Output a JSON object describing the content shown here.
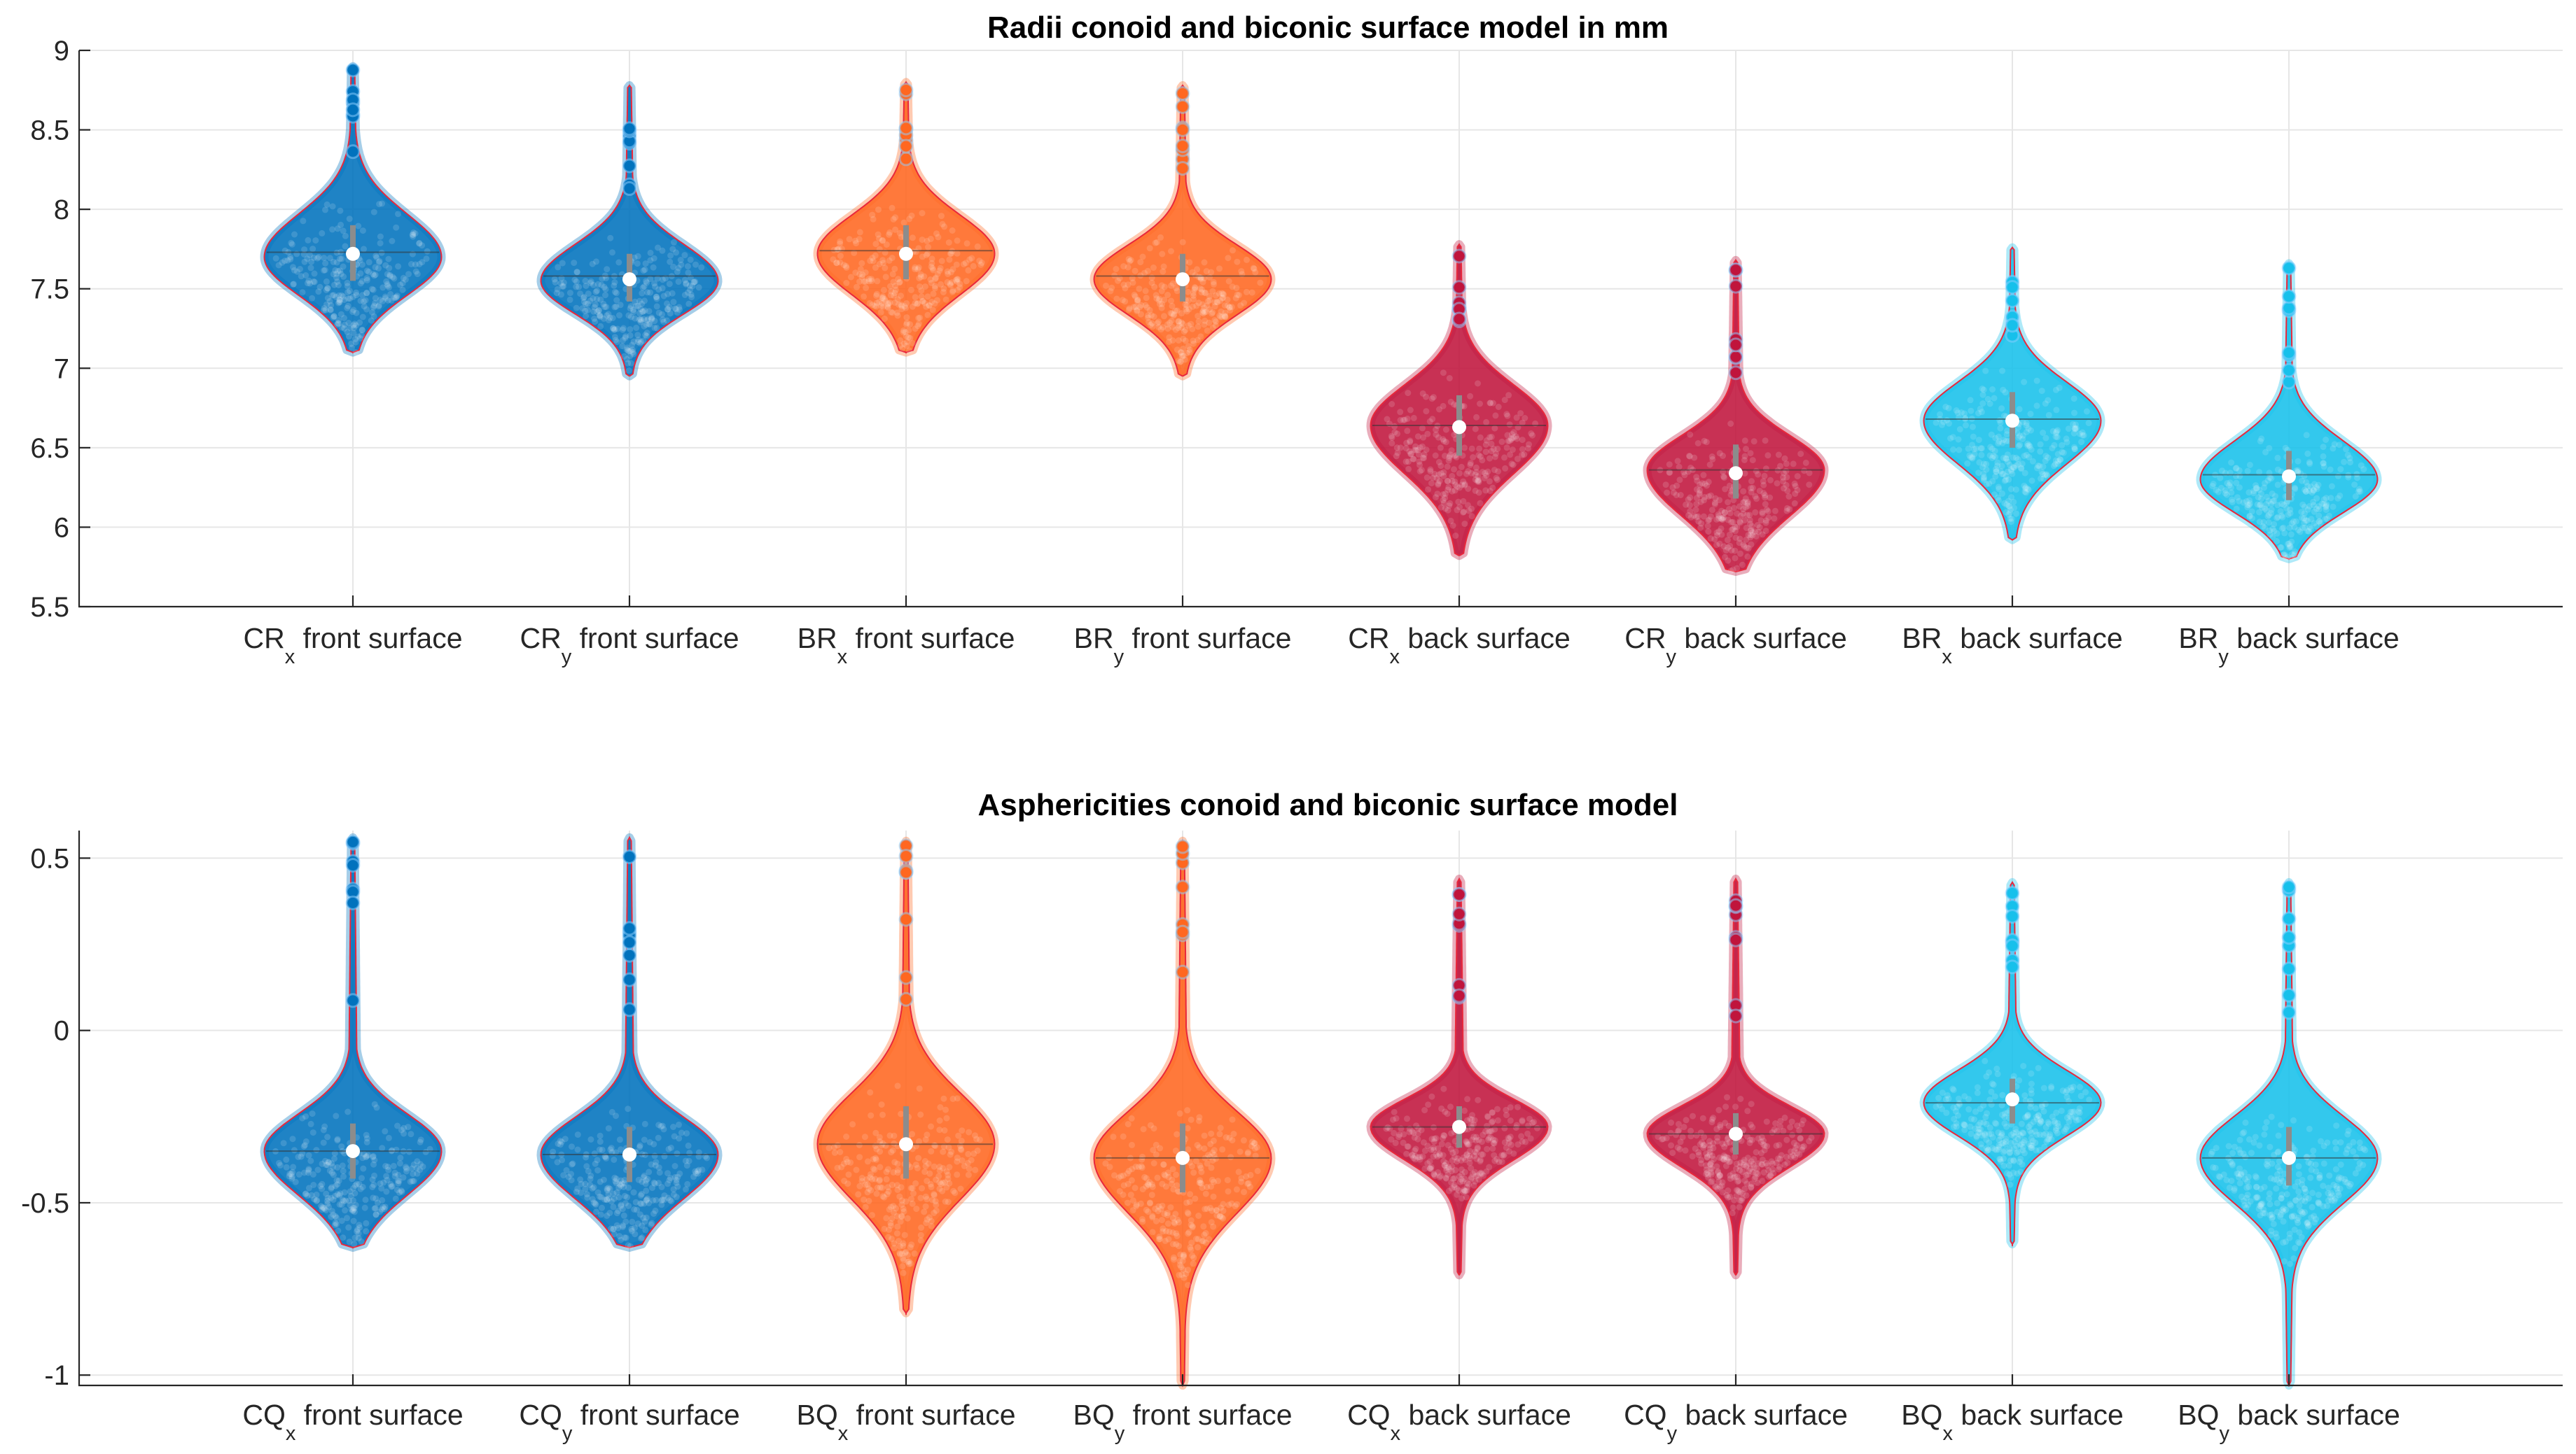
{
  "chart_data": [
    {
      "type": "violin",
      "title": "Radii conoid and biconic surface model in mm",
      "ylim": [
        5.5,
        9
      ],
      "yticks": [
        "5.5",
        "6",
        "6.5",
        "7",
        "7.5",
        "8",
        "8.5",
        "9"
      ],
      "ytick_values": [
        5.5,
        6,
        6.5,
        7,
        7.5,
        8,
        8.5,
        9
      ],
      "grid": true,
      "categories": [
        {
          "main": "CR",
          "sub": "x",
          "rest": " front surface"
        },
        {
          "main": "CR",
          "sub": "y",
          "rest": " front surface"
        },
        {
          "main": "BR",
          "sub": "x",
          "rest": " front surface"
        },
        {
          "main": "BR",
          "sub": "y",
          "rest": " front surface"
        },
        {
          "main": "CR",
          "sub": "x",
          "rest": " back surface"
        },
        {
          "main": "CR",
          "sub": "y",
          "rest": " back surface"
        },
        {
          "main": "BR",
          "sub": "x",
          "rest": " back surface"
        },
        {
          "main": "BR",
          "sub": "y",
          "rest": " back surface"
        }
      ],
      "series": [
        {
          "median": 7.72,
          "mean": 7.73,
          "q1": 7.55,
          "q3": 7.9,
          "min": 7.1,
          "max": 8.9,
          "peak": 7.7,
          "color": "#0072BD"
        },
        {
          "median": 7.56,
          "mean": 7.58,
          "q1": 7.42,
          "q3": 7.72,
          "min": 6.95,
          "max": 8.78,
          "peak": 7.55,
          "color": "#0072BD"
        },
        {
          "median": 7.72,
          "mean": 7.74,
          "q1": 7.56,
          "q3": 7.9,
          "min": 7.1,
          "max": 8.8,
          "peak": 7.72,
          "color": "#FF6720"
        },
        {
          "median": 7.56,
          "mean": 7.58,
          "q1": 7.42,
          "q3": 7.72,
          "min": 6.95,
          "max": 8.78,
          "peak": 7.56,
          "color": "#FF6720"
        },
        {
          "median": 6.63,
          "mean": 6.64,
          "q1": 6.45,
          "q3": 6.83,
          "min": 5.82,
          "max": 7.78,
          "peak": 6.64,
          "color": "#C0143C"
        },
        {
          "median": 6.34,
          "mean": 6.36,
          "q1": 6.18,
          "q3": 6.52,
          "min": 5.72,
          "max": 7.68,
          "peak": 6.36,
          "color": "#C0143C"
        },
        {
          "median": 6.67,
          "mean": 6.68,
          "q1": 6.5,
          "q3": 6.85,
          "min": 5.92,
          "max": 7.76,
          "peak": 6.67,
          "color": "#17C0EB"
        },
        {
          "median": 6.32,
          "mean": 6.33,
          "q1": 6.17,
          "q3": 6.48,
          "min": 5.8,
          "max": 7.66,
          "peak": 6.3,
          "color": "#17C0EB"
        }
      ]
    },
    {
      "type": "violin",
      "title": "Asphericities conoid and biconic surface model",
      "ylim": [
        -1.03,
        0.58
      ],
      "yticks": [
        "-1",
        "-0.5",
        "0",
        "0.5"
      ],
      "ytick_values": [
        -1,
        -0.5,
        0,
        0.5
      ],
      "grid": true,
      "categories": [
        {
          "main": "CQ",
          "sub": "x",
          "rest": " front surface"
        },
        {
          "main": "CQ",
          "sub": "y",
          "rest": " front surface"
        },
        {
          "main": "BQ",
          "sub": "x",
          "rest": " front surface"
        },
        {
          "main": "BQ",
          "sub": "y",
          "rest": " front surface"
        },
        {
          "main": "CQ",
          "sub": "x",
          "rest": " back surface"
        },
        {
          "main": "CQ",
          "sub": "y",
          "rest": " back surface"
        },
        {
          "main": "BQ",
          "sub": "x",
          "rest": " back surface"
        },
        {
          "main": "BQ",
          "sub": "y",
          "rest": " back surface"
        }
      ],
      "series": [
        {
          "median": -0.35,
          "mean": -0.35,
          "q1": -0.43,
          "q3": -0.27,
          "min": -0.63,
          "max": 0.56,
          "peak": -0.35,
          "color": "#0072BD"
        },
        {
          "median": -0.36,
          "mean": -0.36,
          "q1": -0.44,
          "q3": -0.28,
          "min": -0.63,
          "max": 0.56,
          "peak": -0.36,
          "color": "#0072BD"
        },
        {
          "median": -0.33,
          "mean": -0.33,
          "q1": -0.43,
          "q3": -0.22,
          "min": -0.82,
          "max": 0.55,
          "peak": -0.33,
          "color": "#FF6720"
        },
        {
          "median": -0.37,
          "mean": -0.37,
          "q1": -0.47,
          "q3": -0.27,
          "min": -1.03,
          "max": 0.55,
          "peak": -0.37,
          "color": "#FF6720"
        },
        {
          "median": -0.28,
          "mean": -0.28,
          "q1": -0.34,
          "q3": -0.22,
          "min": -0.71,
          "max": 0.44,
          "peak": -0.28,
          "color": "#C0143C"
        },
        {
          "median": -0.3,
          "mean": -0.3,
          "q1": -0.36,
          "q3": -0.24,
          "min": -0.71,
          "max": 0.44,
          "peak": -0.3,
          "color": "#C0143C"
        },
        {
          "median": -0.2,
          "mean": -0.21,
          "q1": -0.27,
          "q3": -0.14,
          "min": -0.62,
          "max": 0.43,
          "peak": -0.21,
          "color": "#17C0EB"
        },
        {
          "median": -0.37,
          "mean": -0.37,
          "q1": -0.45,
          "q3": -0.28,
          "min": -1.03,
          "max": 0.43,
          "peak": -0.37,
          "color": "#17C0EB"
        }
      ]
    }
  ]
}
